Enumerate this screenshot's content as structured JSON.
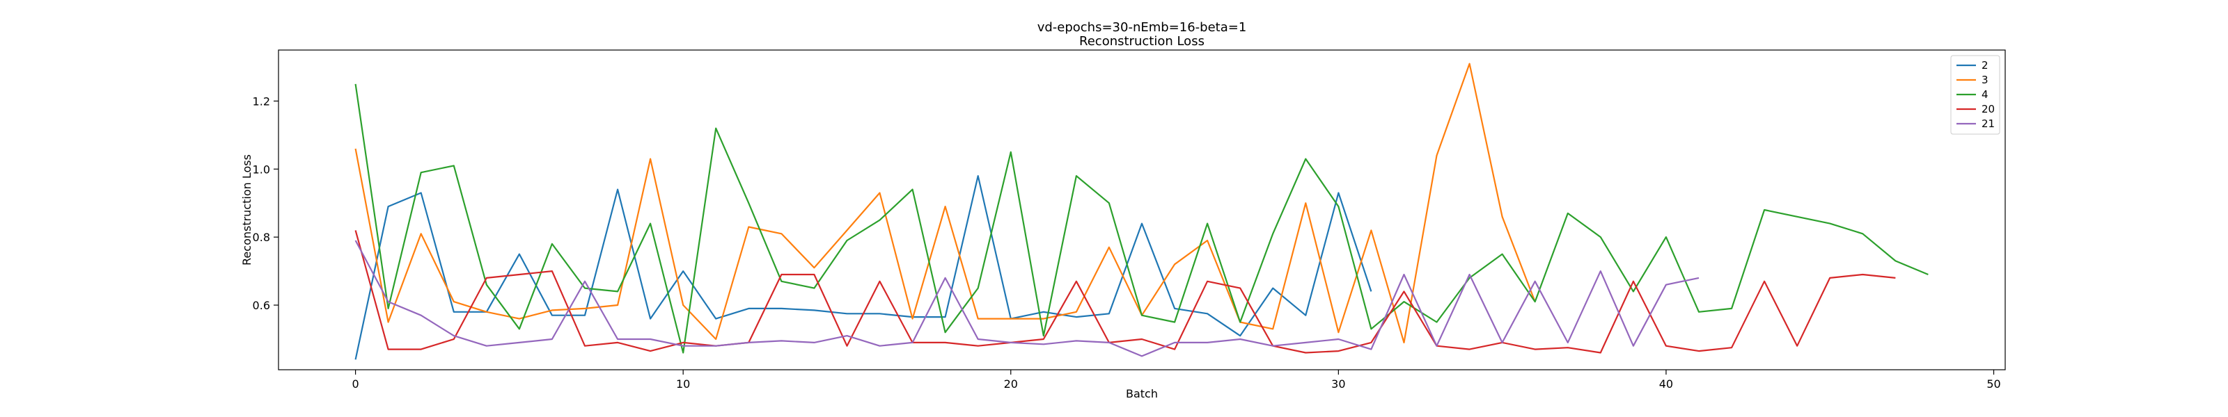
{
  "chart_data": {
    "type": "line",
    "title": "vd-epochs=30-nEmb=16-beta=1",
    "subtitle": "Reconstruction Loss",
    "xlabel": "Batch",
    "ylabel": "Reconstruction Loss",
    "xlim": [
      -2.35,
      50.35
    ],
    "ylim": [
      0.41,
      1.35
    ],
    "xticks": [
      0,
      10,
      20,
      30,
      40,
      50
    ],
    "yticks": [
      0.6,
      0.8,
      1.0,
      1.2
    ],
    "ytick_labels": [
      "0.6",
      "0.8",
      "1.0",
      "1.2"
    ],
    "grid": false,
    "legend": "top-right",
    "series": [
      {
        "name": "2",
        "color": "#1f77b4",
        "values": [
          0.44,
          0.89,
          0.93,
          0.58,
          0.58,
          0.75,
          0.57,
          0.57,
          0.94,
          0.56,
          0.7,
          0.56,
          0.59,
          0.59,
          0.585,
          0.575,
          0.575,
          0.565,
          0.565,
          0.98,
          0.56,
          0.58,
          0.565,
          0.575,
          0.84,
          0.59,
          0.575,
          0.51,
          0.65,
          0.57,
          0.93,
          0.64
        ]
      },
      {
        "name": "3",
        "color": "#ff7f0e",
        "values": [
          1.06,
          0.55,
          0.81,
          0.61,
          0.58,
          0.56,
          0.585,
          0.59,
          0.6,
          1.03,
          0.6,
          0.5,
          0.83,
          0.81,
          0.71,
          0.82,
          0.93,
          0.56,
          0.89,
          0.56,
          0.56,
          0.56,
          0.58,
          0.77,
          0.57,
          0.72,
          0.79,
          0.55,
          0.53,
          0.9,
          0.52,
          0.82,
          0.49,
          1.04,
          1.31,
          0.86,
          0.61
        ]
      },
      {
        "name": "4",
        "color": "#2ca02c",
        "values": [
          1.25,
          0.59,
          0.99,
          1.01,
          0.66,
          0.53,
          0.78,
          0.65,
          0.64,
          0.84,
          0.46,
          1.12,
          0.9,
          0.67,
          0.65,
          0.79,
          0.85,
          0.94,
          0.52,
          0.65,
          1.05,
          0.51,
          0.98,
          0.9,
          0.57,
          0.55,
          0.84,
          0.55,
          0.81,
          1.03,
          0.89,
          0.53,
          0.61,
          0.55,
          0.68,
          0.75,
          0.61,
          0.87,
          0.8,
          0.64,
          0.8,
          0.58,
          0.59,
          0.88,
          0.86,
          0.84,
          0.81,
          0.73,
          0.69
        ]
      },
      {
        "name": "20",
        "color": "#d62728",
        "values": [
          0.82,
          0.47,
          0.47,
          0.5,
          0.68,
          0.69,
          0.7,
          0.48,
          0.49,
          0.465,
          0.49,
          0.48,
          0.49,
          0.69,
          0.69,
          0.48,
          0.67,
          0.49,
          0.49,
          0.48,
          0.49,
          0.5,
          0.67,
          0.49,
          0.5,
          0.47,
          0.67,
          0.65,
          0.48,
          0.46,
          0.465,
          0.49,
          0.64,
          0.48,
          0.47,
          0.49,
          0.47,
          0.475,
          0.46,
          0.67,
          0.48,
          0.465,
          0.475,
          0.67,
          0.48,
          0.68,
          0.69,
          0.68
        ]
      },
      {
        "name": "21",
        "color": "#9467bd",
        "values": [
          0.79,
          0.61,
          0.57,
          0.51,
          0.48,
          0.49,
          0.5,
          0.67,
          0.5,
          0.5,
          0.48,
          0.48,
          0.49,
          0.495,
          0.49,
          0.51,
          0.48,
          0.49,
          0.68,
          0.5,
          0.49,
          0.485,
          0.495,
          0.49,
          0.45,
          0.49,
          0.49,
          0.5,
          0.48,
          0.49,
          0.5,
          0.47,
          0.69,
          0.48,
          0.69,
          0.49,
          0.67,
          0.49,
          0.7,
          0.48,
          0.66,
          0.68
        ]
      }
    ]
  }
}
